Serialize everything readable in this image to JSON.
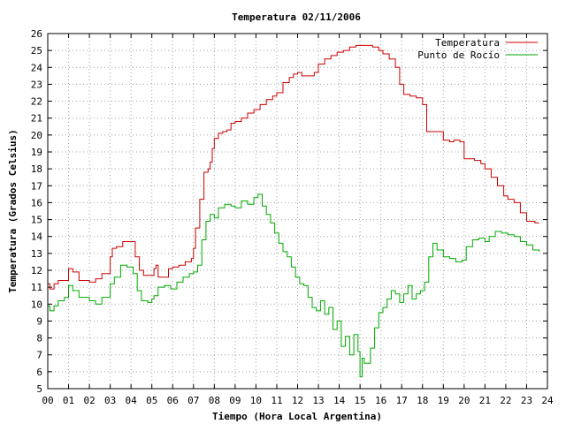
{
  "chart_data": {
    "type": "line",
    "title": "Temperatura 02/11/2006",
    "xlabel": "Tiempo (Hora Local Argentina)",
    "ylabel": "Temperatura (Grados Celsius)",
    "xlim": [
      0,
      24
    ],
    "ylim": [
      5,
      26
    ],
    "grid": true,
    "legend_position": "top-right",
    "x_tick_labels": [
      "00",
      "01",
      "02",
      "03",
      "04",
      "05",
      "06",
      "07",
      "08",
      "09",
      "10",
      "11",
      "12",
      "13",
      "14",
      "15",
      "16",
      "17",
      "18",
      "19",
      "20",
      "21",
      "22",
      "23",
      "24"
    ],
    "y_ticks": [
      5,
      6,
      7,
      8,
      9,
      10,
      11,
      12,
      13,
      14,
      15,
      16,
      17,
      18,
      19,
      20,
      21,
      22,
      23,
      24,
      25,
      26
    ],
    "series": [
      {
        "name": "Temperatura",
        "color": "#cc0000",
        "x": [
          0,
          0.1,
          0.3,
          0.5,
          0.8,
          1.0,
          1.2,
          1.5,
          2.0,
          2.3,
          2.6,
          3.0,
          3.1,
          3.3,
          3.6,
          4.0,
          4.2,
          4.4,
          4.6,
          5.0,
          5.1,
          5.2,
          5.3,
          5.5,
          5.8,
          6.0,
          6.3,
          6.6,
          6.9,
          7.0,
          7.1,
          7.3,
          7.5,
          7.7,
          7.8,
          7.9,
          8.0,
          8.2,
          8.4,
          8.6,
          8.8,
          9.0,
          9.3,
          9.6,
          9.9,
          10.2,
          10.5,
          10.8,
          11.0,
          11.3,
          11.6,
          11.8,
          12.0,
          12.2,
          12.5,
          12.8,
          13.0,
          13.3,
          13.6,
          13.9,
          14.2,
          14.5,
          14.8,
          15.0,
          15.3,
          15.6,
          15.9,
          16.1,
          16.4,
          16.7,
          16.9,
          17.1,
          17.4,
          17.7,
          18.0,
          18.2,
          18.4,
          18.7,
          19.0,
          19.3,
          19.5,
          19.8,
          20.0,
          20.3,
          20.5,
          20.8,
          21.0,
          21.3,
          21.6,
          21.9,
          22.1,
          22.4,
          22.7,
          23.0,
          23.2,
          23.4,
          23.6
        ],
        "values": [
          11.2,
          10.9,
          11.2,
          11.4,
          11.4,
          12.1,
          11.9,
          11.4,
          11.3,
          11.5,
          11.8,
          12.8,
          13.3,
          13.4,
          13.7,
          13.7,
          12.8,
          12.0,
          11.7,
          11.7,
          12.1,
          12.3,
          11.6,
          11.6,
          12.1,
          12.2,
          12.3,
          12.5,
          12.7,
          13.3,
          14.5,
          16.2,
          17.8,
          18.0,
          18.4,
          19.2,
          19.8,
          20.1,
          20.2,
          20.3,
          20.7,
          20.8,
          21.0,
          21.3,
          21.5,
          21.8,
          22.1,
          22.3,
          22.5,
          23.1,
          23.4,
          23.6,
          23.7,
          23.5,
          23.5,
          23.7,
          24.2,
          24.5,
          24.7,
          24.9,
          25.0,
          25.2,
          25.3,
          25.3,
          25.3,
          25.2,
          25.0,
          24.8,
          24.5,
          24.0,
          23.0,
          22.4,
          22.3,
          22.2,
          21.8,
          20.2,
          20.2,
          20.2,
          19.7,
          19.6,
          19.7,
          19.6,
          18.6,
          18.6,
          18.5,
          18.3,
          18.0,
          17.5,
          17.0,
          16.4,
          16.2,
          16.0,
          15.4,
          14.9,
          14.9,
          14.8,
          14.8
        ]
      },
      {
        "name": "Punto de Rocío",
        "color": "#00aa00",
        "x": [
          0,
          0.1,
          0.3,
          0.5,
          0.8,
          1.0,
          1.2,
          1.5,
          2.0,
          2.3,
          2.6,
          3.0,
          3.2,
          3.5,
          3.8,
          4.1,
          4.3,
          4.5,
          4.8,
          5.0,
          5.1,
          5.3,
          5.6,
          5.9,
          6.2,
          6.5,
          6.8,
          7.0,
          7.2,
          7.4,
          7.6,
          7.8,
          8.0,
          8.2,
          8.5,
          8.8,
          9.0,
          9.3,
          9.6,
          9.9,
          10.1,
          10.3,
          10.5,
          10.7,
          10.9,
          11.1,
          11.3,
          11.5,
          11.7,
          11.9,
          12.1,
          12.3,
          12.5,
          12.7,
          12.9,
          13.1,
          13.3,
          13.5,
          13.7,
          13.9,
          14.1,
          14.3,
          14.5,
          14.7,
          14.9,
          15.0,
          15.1,
          15.2,
          15.4,
          15.5,
          15.7,
          15.9,
          16.1,
          16.3,
          16.5,
          16.7,
          16.9,
          17.1,
          17.3,
          17.5,
          17.7,
          17.9,
          18.1,
          18.3,
          18.5,
          18.7,
          19.0,
          19.3,
          19.6,
          19.9,
          20.1,
          20.4,
          20.7,
          21.0,
          21.2,
          21.5,
          21.8,
          22.1,
          22.4,
          22.7,
          23.0,
          23.3,
          23.6
        ],
        "values": [
          9.9,
          9.6,
          9.9,
          10.2,
          10.4,
          11.1,
          10.8,
          10.4,
          10.2,
          10.0,
          10.4,
          11.2,
          11.6,
          12.3,
          12.2,
          11.8,
          10.8,
          10.2,
          10.1,
          10.3,
          10.5,
          11.0,
          11.1,
          10.9,
          11.3,
          11.6,
          11.8,
          11.9,
          12.3,
          13.8,
          14.9,
          15.3,
          15.1,
          15.7,
          15.9,
          15.8,
          15.7,
          16.1,
          15.9,
          16.3,
          16.5,
          15.8,
          15.3,
          14.8,
          14.2,
          13.6,
          13.1,
          12.8,
          12.2,
          11.6,
          11.2,
          11.1,
          10.4,
          9.8,
          9.6,
          10.2,
          9.4,
          9.8,
          8.5,
          9.0,
          7.5,
          8.1,
          7.0,
          8.2,
          7.2,
          5.7,
          6.8,
          6.5,
          6.5,
          7.4,
          8.6,
          9.5,
          9.8,
          10.3,
          10.8,
          10.6,
          10.1,
          10.6,
          11.1,
          10.3,
          10.6,
          10.8,
          11.3,
          12.8,
          13.6,
          13.2,
          12.8,
          12.7,
          12.5,
          12.6,
          13.4,
          13.8,
          13.9,
          13.7,
          14.0,
          14.3,
          14.2,
          14.1,
          14.0,
          13.7,
          13.5,
          13.2,
          13.1
        ]
      }
    ]
  }
}
